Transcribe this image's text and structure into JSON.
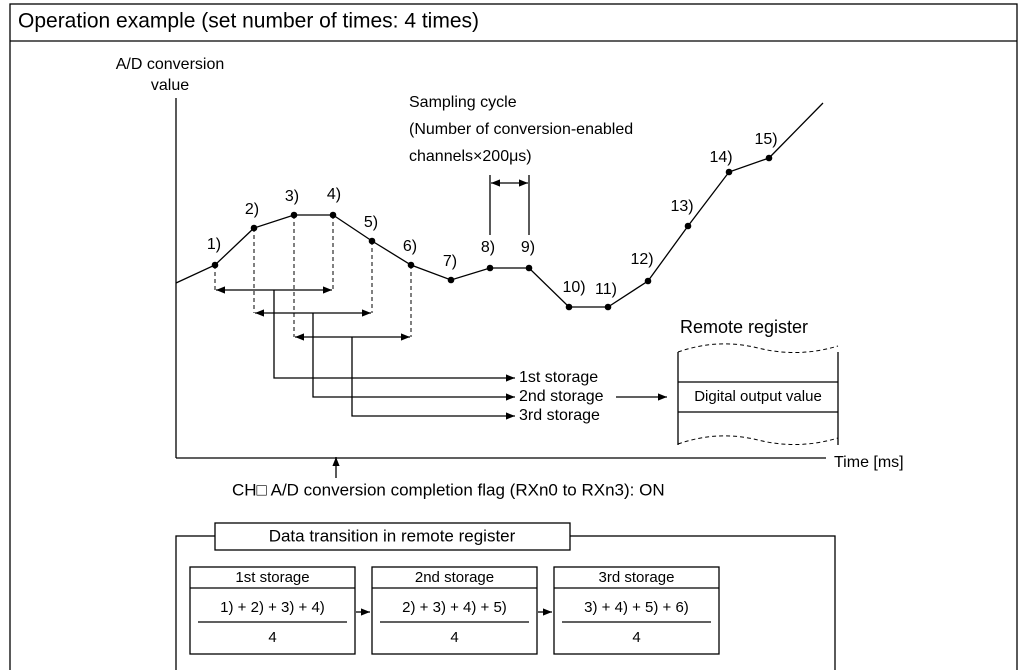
{
  "title": "Operation example (set number of times: 4 times)",
  "axis": {
    "y_label": [
      "A/D conversion",
      "value"
    ],
    "x_label": "Time [ms]"
  },
  "sampling_cycle": [
    "Sampling cycle",
    "(Number of conversion-enabled",
    "channels×200μs)"
  ],
  "points": [
    "1)",
    "2)",
    "3)",
    "4)",
    "5)",
    "6)",
    "7)",
    "8)",
    "9)",
    "10)",
    "11)",
    "12)",
    "13)",
    "14)",
    "15)"
  ],
  "storage_labels": [
    "1st storage",
    "2nd storage",
    "3rd storage"
  ],
  "remote_register": {
    "title": "Remote register",
    "row": "Digital output value"
  },
  "flag": "CH□ A/D conversion completion flag (RXn0 to RXn3): ON",
  "transition": {
    "title": "Data transition in remote register",
    "boxes": [
      {
        "header": "1st storage",
        "numerator": "1) + 2) + 3) + 4)",
        "denominator": "4"
      },
      {
        "header": "2nd storage",
        "numerator": "2) + 3) + 4) + 5)",
        "denominator": "4"
      },
      {
        "header": "3rd storage",
        "numerator": "3) + 4) + 5) + 6)",
        "denominator": "4"
      }
    ]
  }
}
